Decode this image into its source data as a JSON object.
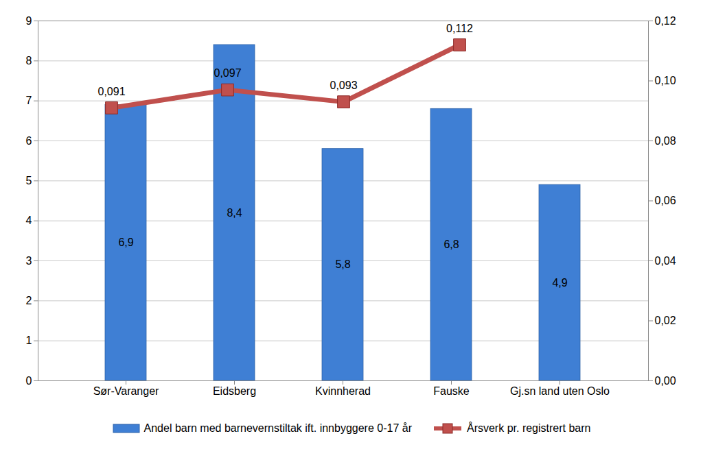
{
  "chart_data": {
    "type": "bar",
    "categories": [
      "Sør-Varanger",
      "Eidsberg",
      "Kvinnherad",
      "Fauske",
      "Gj.sn land uten Oslo"
    ],
    "series": [
      {
        "name": "Andel barn med barnevernstiltak ift. innbyggere 0-17 år",
        "type": "bar",
        "color": "#3f7fd4",
        "values": [
          6.9,
          8.4,
          5.8,
          6.8,
          4.9
        ],
        "value_labels": [
          "6,9",
          "8,4",
          "5,8",
          "6,8",
          "4,9"
        ]
      },
      {
        "name": "Årsverk pr. registrert barn",
        "type": "line",
        "axis": "y2",
        "color": "#c0504d",
        "marker": "square",
        "values": [
          0.091,
          0.097,
          0.093,
          0.112,
          null
        ],
        "value_labels": [
          "0,091",
          "0,097",
          "0,093",
          "0,112",
          null
        ]
      }
    ],
    "ylim": [
      0,
      9
    ],
    "yticks": [
      0,
      1,
      2,
      3,
      4,
      5,
      6,
      7,
      8,
      9
    ],
    "y2lim": [
      0,
      0.12
    ],
    "y2ticks": [
      {
        "value": 0,
        "label": "0,00"
      },
      {
        "value": 0.02,
        "label": "0,02"
      },
      {
        "value": 0.04,
        "label": "0,04"
      },
      {
        "value": 0.06,
        "label": "0,06"
      },
      {
        "value": 0.08,
        "label": "0,08"
      },
      {
        "value": 0.1,
        "label": "0,10"
      },
      {
        "value": 0.12,
        "label": "0,12"
      }
    ],
    "grid": true,
    "data_labels": true,
    "legend": "bottom"
  }
}
